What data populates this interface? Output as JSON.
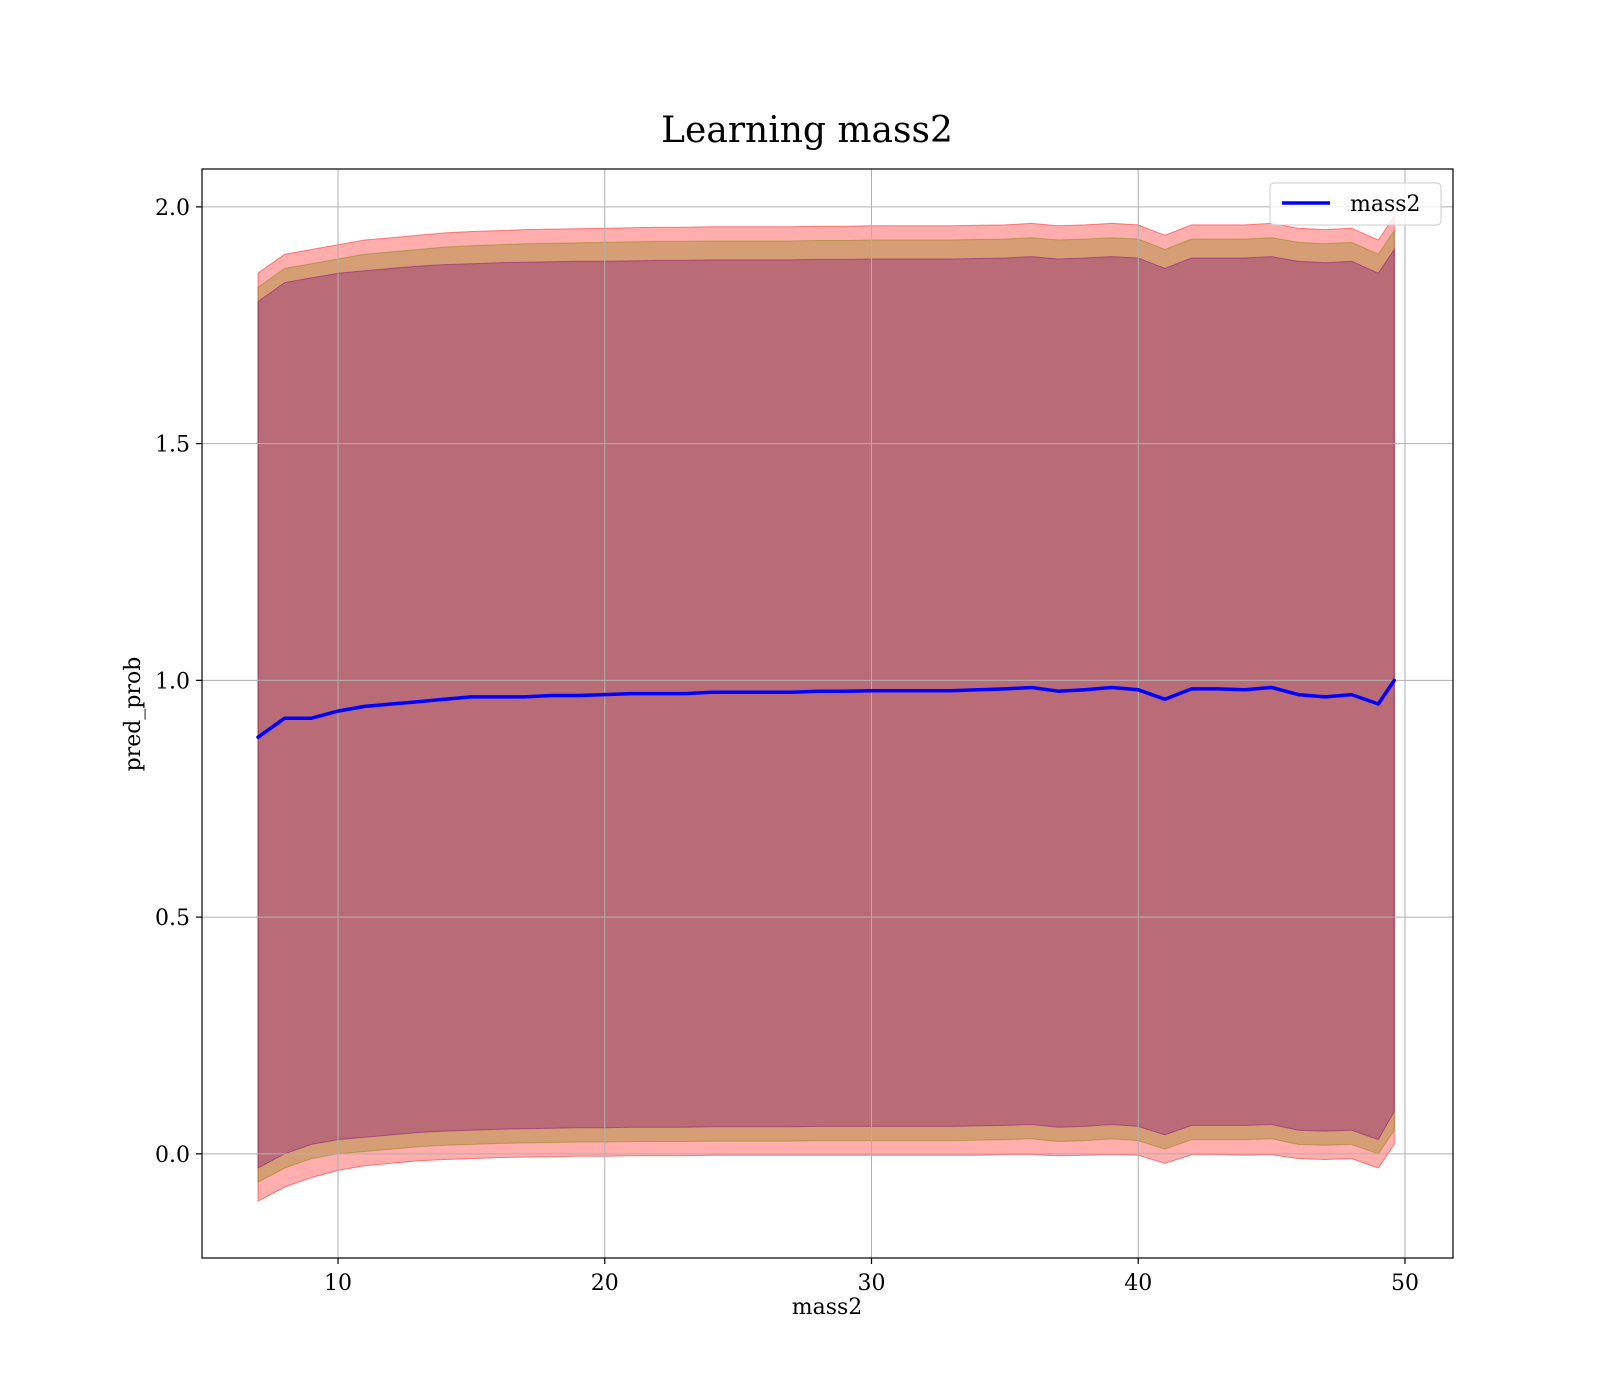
{
  "chart_data": {
    "type": "line",
    "title": "Learning mass2",
    "xlabel": "mass2",
    "ylabel": "pred_prob",
    "xlim": [
      4.9,
      51.8
    ],
    "ylim": [
      -0.22,
      2.08
    ],
    "xticks": [
      10,
      20,
      30,
      40,
      50
    ],
    "yticks": [
      0.0,
      0.5,
      1.0,
      1.5,
      2.0
    ],
    "xtick_labels": [
      "10",
      "20",
      "30",
      "40",
      "50"
    ],
    "ytick_labels": [
      "0.0",
      "0.5",
      "1.0",
      "1.5",
      "2.0"
    ],
    "grid": true,
    "legend": {
      "position": "top-right",
      "entries": [
        "mass2"
      ]
    },
    "x": [
      7.0,
      8.0,
      9.0,
      10.0,
      11.0,
      12.0,
      13.0,
      14.0,
      15.0,
      16.0,
      17.0,
      18.0,
      19.0,
      20.0,
      21.0,
      22.0,
      23.0,
      24.0,
      25.0,
      26.0,
      27.0,
      28.0,
      29.0,
      30.0,
      31.0,
      32.0,
      33.0,
      34.0,
      35.0,
      36.0,
      37.0,
      38.0,
      39.0,
      40.0,
      41.0,
      42.0,
      43.0,
      44.0,
      45.0,
      46.0,
      47.0,
      48.0,
      49.0,
      49.6
    ],
    "series": [
      {
        "name": "mass2",
        "color": "#0000ff",
        "values": [
          0.88,
          0.92,
          0.92,
          0.935,
          0.945,
          0.95,
          0.955,
          0.96,
          0.965,
          0.965,
          0.965,
          0.968,
          0.968,
          0.97,
          0.972,
          0.972,
          0.972,
          0.975,
          0.975,
          0.975,
          0.975,
          0.977,
          0.977,
          0.978,
          0.978,
          0.978,
          0.978,
          0.98,
          0.982,
          0.985,
          0.977,
          0.98,
          0.985,
          0.98,
          0.96,
          0.982,
          0.982,
          0.98,
          0.985,
          0.97,
          0.965,
          0.97,
          0.95,
          1.0
        ]
      }
    ],
    "bands": [
      {
        "color": "#ff0000",
        "opacity": 0.32,
        "lower": [
          -0.1,
          -0.07,
          -0.05,
          -0.035,
          -0.025,
          -0.02,
          -0.015,
          -0.012,
          -0.01,
          -0.008,
          -0.007,
          -0.006,
          -0.005,
          -0.005,
          -0.004,
          -0.004,
          -0.004,
          -0.003,
          -0.003,
          -0.003,
          -0.003,
          -0.003,
          -0.003,
          -0.003,
          -0.003,
          -0.003,
          -0.003,
          -0.003,
          -0.002,
          -0.002,
          -0.004,
          -0.003,
          -0.002,
          -0.003,
          -0.02,
          -0.002,
          -0.002,
          -0.003,
          -0.002,
          -0.01,
          -0.012,
          -0.01,
          -0.03,
          0.02
        ],
        "upper": [
          1.86,
          1.9,
          1.91,
          1.92,
          1.93,
          1.935,
          1.94,
          1.945,
          1.948,
          1.95,
          1.952,
          1.953,
          1.954,
          1.955,
          1.956,
          1.957,
          1.957,
          1.958,
          1.958,
          1.958,
          1.958,
          1.959,
          1.959,
          1.96,
          1.96,
          1.96,
          1.96,
          1.961,
          1.962,
          1.965,
          1.96,
          1.962,
          1.965,
          1.962,
          1.94,
          1.962,
          1.962,
          1.962,
          1.965,
          1.955,
          1.952,
          1.955,
          1.93,
          1.98
        ]
      },
      {
        "color": "#808000",
        "opacity": 0.32,
        "lower": [
          -0.06,
          -0.03,
          -0.01,
          0.0,
          0.005,
          0.01,
          0.015,
          0.018,
          0.02,
          0.022,
          0.023,
          0.024,
          0.025,
          0.025,
          0.026,
          0.026,
          0.026,
          0.027,
          0.027,
          0.027,
          0.027,
          0.028,
          0.028,
          0.028,
          0.028,
          0.028,
          0.028,
          0.029,
          0.03,
          0.032,
          0.026,
          0.028,
          0.032,
          0.028,
          0.01,
          0.03,
          0.03,
          0.03,
          0.032,
          0.02,
          0.018,
          0.02,
          0.0,
          0.05
        ],
        "upper": [
          1.83,
          1.87,
          1.88,
          1.89,
          1.9,
          1.905,
          1.91,
          1.915,
          1.918,
          1.92,
          1.922,
          1.923,
          1.924,
          1.925,
          1.926,
          1.927,
          1.927,
          1.928,
          1.928,
          1.928,
          1.928,
          1.929,
          1.929,
          1.93,
          1.93,
          1.93,
          1.93,
          1.931,
          1.932,
          1.935,
          1.93,
          1.932,
          1.935,
          1.932,
          1.91,
          1.932,
          1.932,
          1.932,
          1.935,
          1.925,
          1.922,
          1.925,
          1.9,
          1.95
        ]
      },
      {
        "color": "#800080",
        "opacity": 0.32,
        "lower": [
          -0.03,
          0.0,
          0.02,
          0.03,
          0.035,
          0.04,
          0.045,
          0.048,
          0.05,
          0.052,
          0.053,
          0.054,
          0.055,
          0.055,
          0.056,
          0.056,
          0.056,
          0.057,
          0.057,
          0.057,
          0.057,
          0.058,
          0.058,
          0.058,
          0.058,
          0.058,
          0.058,
          0.059,
          0.06,
          0.062,
          0.056,
          0.058,
          0.062,
          0.058,
          0.04,
          0.06,
          0.06,
          0.06,
          0.062,
          0.05,
          0.048,
          0.05,
          0.03,
          0.09
        ],
        "upper": [
          1.8,
          1.84,
          1.85,
          1.86,
          1.865,
          1.87,
          1.875,
          1.878,
          1.88,
          1.882,
          1.883,
          1.884,
          1.885,
          1.885,
          1.886,
          1.887,
          1.887,
          1.888,
          1.888,
          1.888,
          1.888,
          1.889,
          1.889,
          1.89,
          1.89,
          1.89,
          1.89,
          1.891,
          1.892,
          1.895,
          1.89,
          1.892,
          1.895,
          1.892,
          1.87,
          1.892,
          1.892,
          1.892,
          1.895,
          1.885,
          1.882,
          1.885,
          1.86,
          1.91
        ]
      }
    ]
  }
}
